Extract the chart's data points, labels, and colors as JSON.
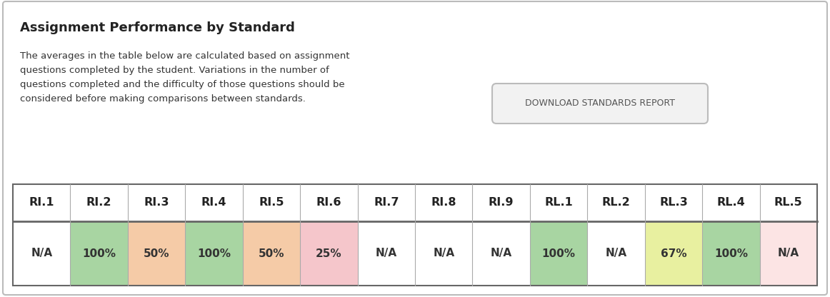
{
  "title": "Assignment Performance by Standard",
  "description_lines": [
    "The averages in the table below are calculated based on assignment",
    "questions completed by the student. Variations in the number of",
    "questions completed and the difficulty of those questions should be",
    "considered before making comparisons between standards."
  ],
  "button_text": "DOWNLOAD STANDARDS REPORT",
  "headers": [
    "RI.1",
    "RI.2",
    "RI.3",
    "RI.4",
    "RI.5",
    "RI.6",
    "RI.7",
    "RI.8",
    "RI.9",
    "RL.1",
    "RL.2",
    "RL.3",
    "RL.4",
    "RL.5"
  ],
  "values": [
    "N/A",
    "100%",
    "50%",
    "100%",
    "50%",
    "25%",
    "N/A",
    "N/A",
    "N/A",
    "100%",
    "N/A",
    "67%",
    "100%",
    "N/A"
  ],
  "cell_colors": [
    "#ffffff",
    "#a8d5a2",
    "#f5cba7",
    "#a8d5a2",
    "#f5cba7",
    "#f5c6cb",
    "#ffffff",
    "#ffffff",
    "#ffffff",
    "#a8d5a2",
    "#ffffff",
    "#e8f0a0",
    "#a8d5a2",
    "#fce4e4"
  ],
  "bg_color": "#ffffff",
  "col_divider_color": "#aaaaaa",
  "header_bg": "#ffffff",
  "table_border_color": "#666666",
  "outer_border_color": "#bbbbbb",
  "title_fontsize": 13,
  "body_fontsize": 9.5,
  "cell_fontsize": 11,
  "header_fontsize": 11.5
}
